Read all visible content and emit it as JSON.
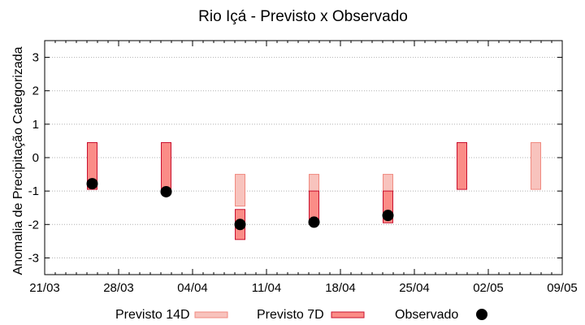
{
  "chart_data": {
    "type": "range-bar",
    "title": "Rio Içá - Previsto x Observado",
    "xlabel": "",
    "ylabel": "Anomalia de Precipitação Categorizada",
    "ylim": [
      -3.5,
      3.5
    ],
    "yticks": [
      -3,
      -2,
      -1,
      0,
      1,
      2,
      3
    ],
    "x_tick_labels": [
      "21/03",
      "28/03",
      "04/04",
      "11/04",
      "18/04",
      "25/04",
      "02/05",
      "09/05"
    ],
    "x_domain_days": [
      0,
      49
    ],
    "grid": "horizontal-dotted",
    "colors": {
      "previsto14d_fill": "#f8c3bd",
      "previsto14d_stroke": "#f08a80",
      "previsto7d_fill": "#fb8c87",
      "previsto7d_stroke": "#c8102e",
      "observado": "#000000"
    },
    "series": [
      {
        "name": "Previsto 14D",
        "kind": "range",
        "points": [
          {
            "x_day": 18.5,
            "low": -1.45,
            "high": -0.5
          },
          {
            "x_day": 25.5,
            "low": -1.0,
            "high": -0.5
          },
          {
            "x_day": 32.5,
            "low": -1.0,
            "high": -0.5
          },
          {
            "x_day": 46.5,
            "low": -0.95,
            "high": 0.45
          }
        ]
      },
      {
        "name": "Previsto 7D",
        "kind": "range",
        "points": [
          {
            "x_day": 4.5,
            "low": -0.95,
            "high": 0.45
          },
          {
            "x_day": 11.5,
            "low": -1.0,
            "high": 0.45
          },
          {
            "x_day": 18.5,
            "low": -2.45,
            "high": -1.55
          },
          {
            "x_day": 25.5,
            "low": -1.95,
            "high": -1.0
          },
          {
            "x_day": 32.5,
            "low": -1.95,
            "high": -1.0
          },
          {
            "x_day": 39.5,
            "low": -0.95,
            "high": 0.45
          }
        ]
      },
      {
        "name": "Observado",
        "kind": "point",
        "points": [
          {
            "x_day": 4.5,
            "y": -0.78
          },
          {
            "x_day": 11.5,
            "y": -1.02
          },
          {
            "x_day": 18.5,
            "y": -2.0
          },
          {
            "x_day": 25.5,
            "y": -1.93
          },
          {
            "x_day": 32.5,
            "y": -1.73
          }
        ]
      }
    ],
    "legend": {
      "placement": "bottom",
      "items": [
        {
          "label": "Previsto 14D",
          "series": "Previsto 14D"
        },
        {
          "label": "Previsto 7D",
          "series": "Previsto 7D"
        },
        {
          "label": "Observado",
          "series": "Observado"
        }
      ]
    }
  }
}
